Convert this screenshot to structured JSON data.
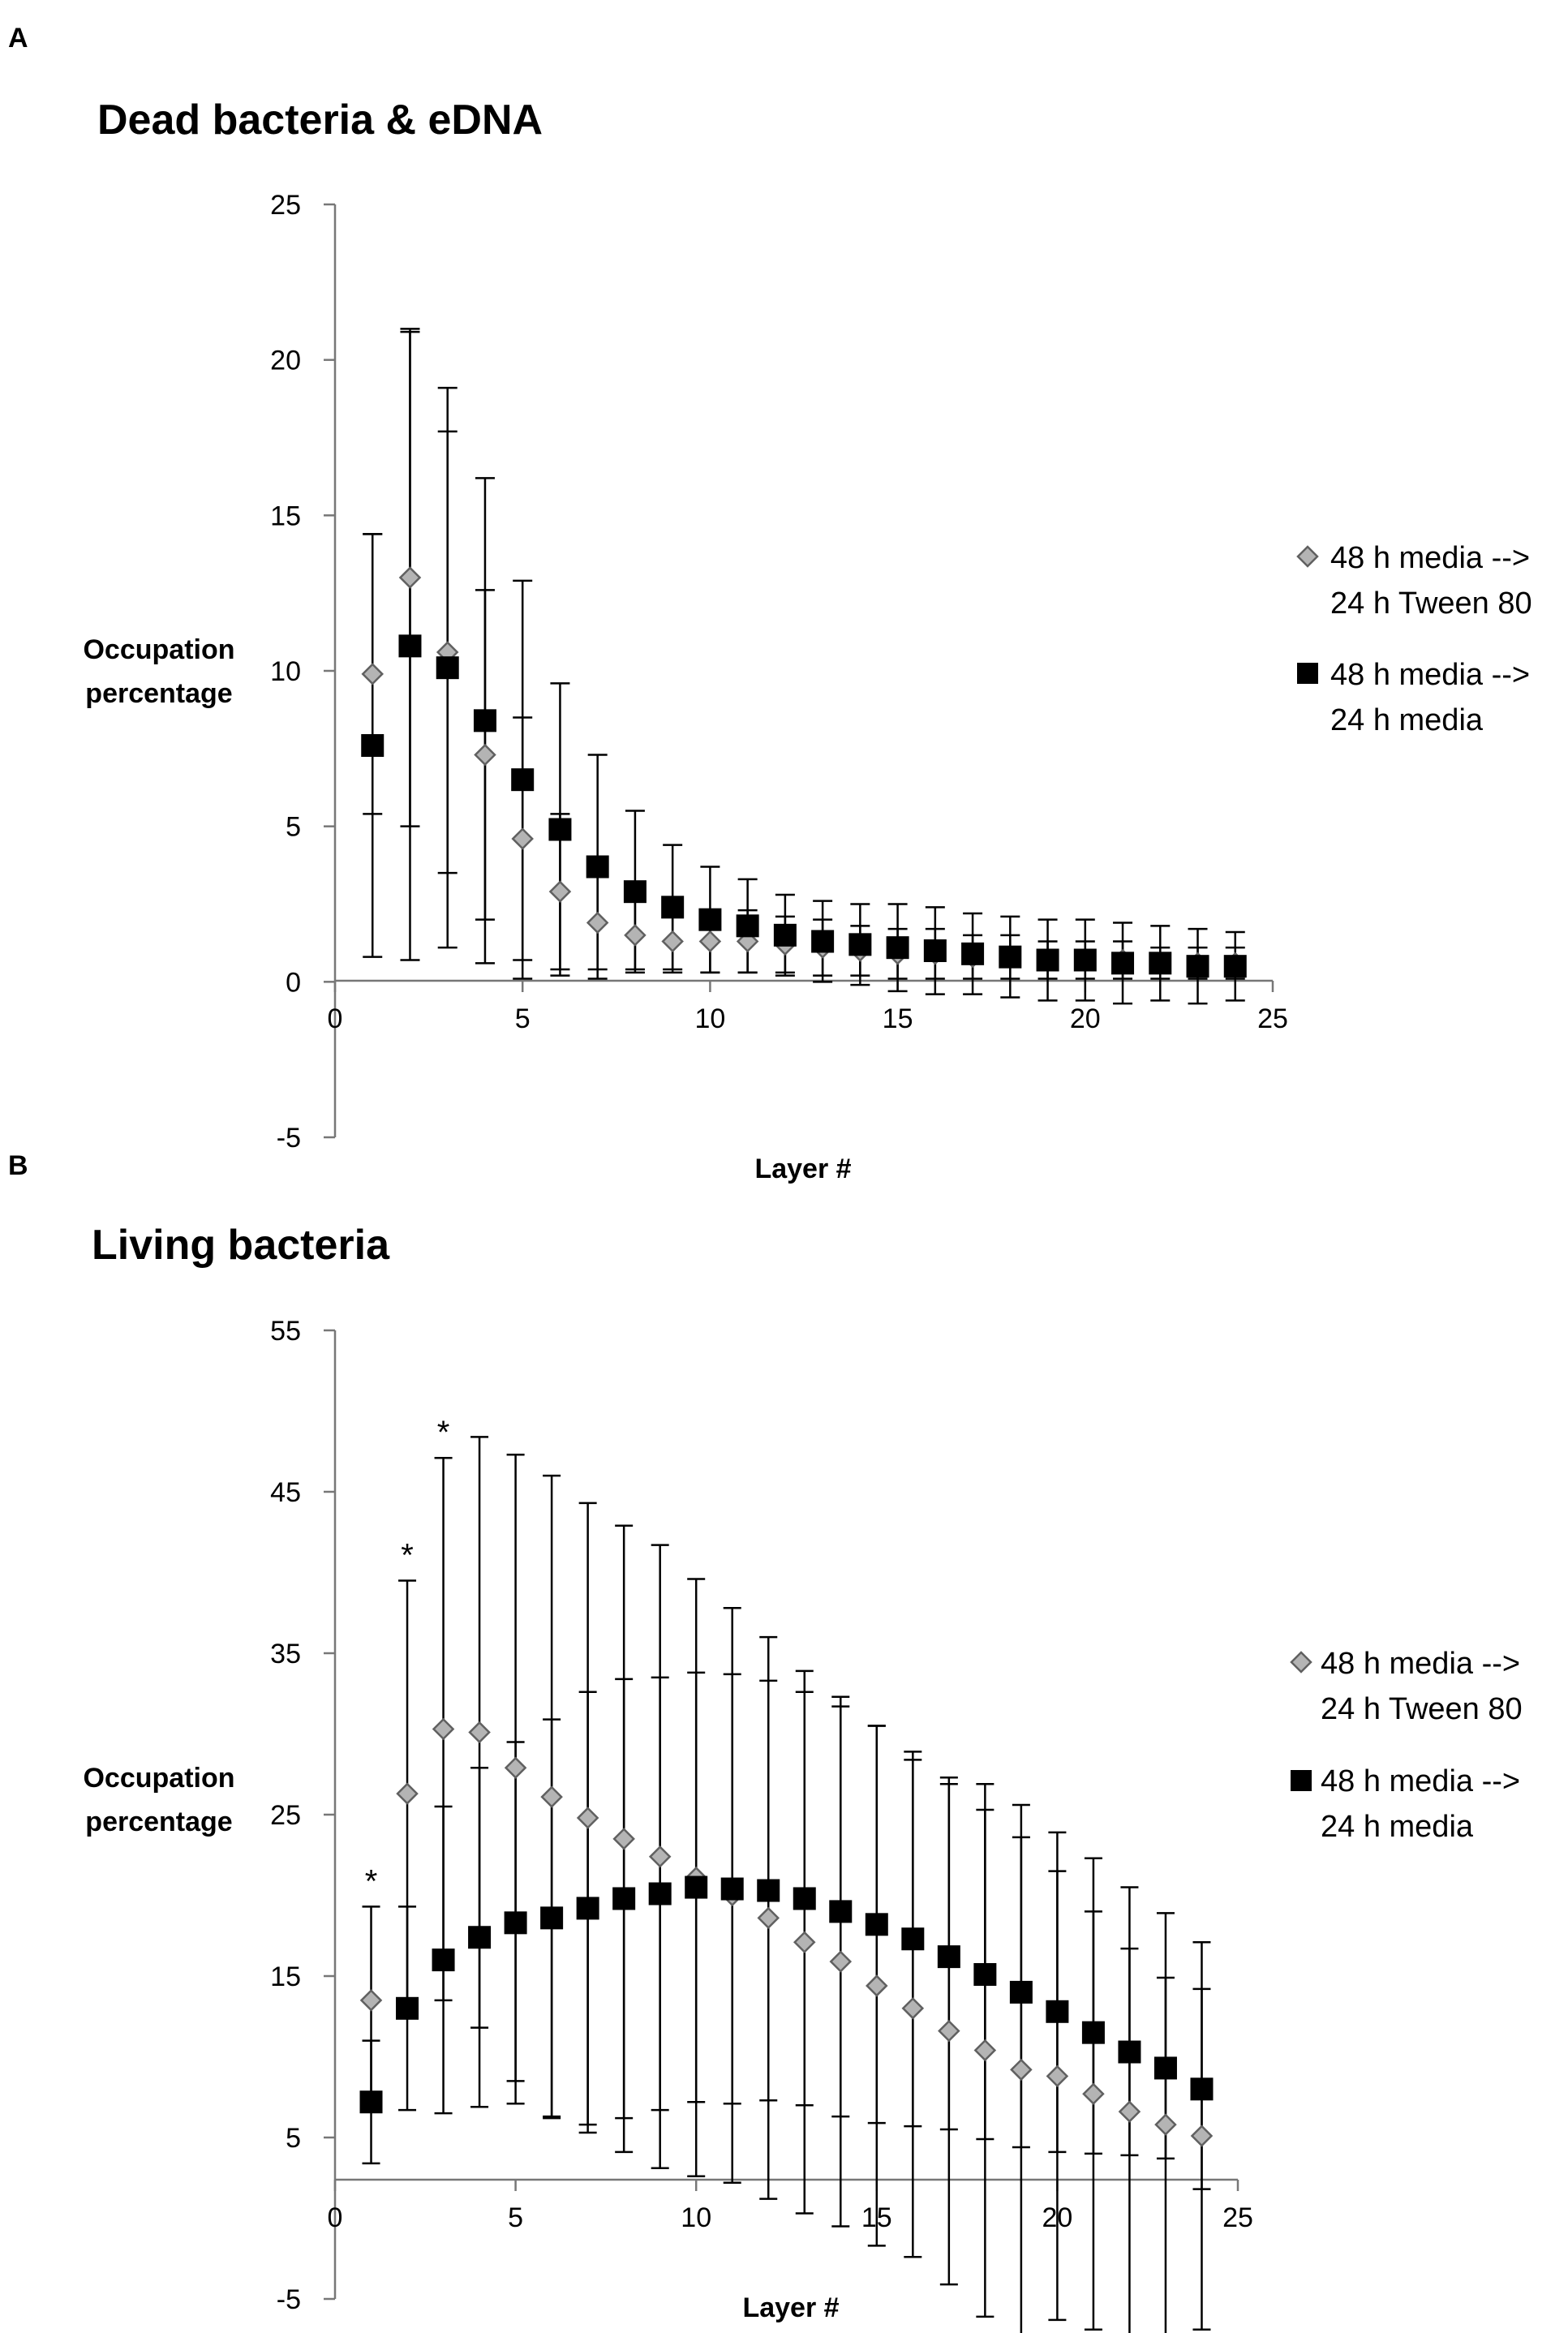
{
  "chart_data": [
    {
      "panel": "A",
      "type": "scatter",
      "title": "Dead bacteria & eDNA",
      "xlabel": "Layer #",
      "ylabel": [
        "Occupation",
        "percentage"
      ],
      "xlim": [
        0,
        25
      ],
      "ylim": [
        -5,
        25
      ],
      "xticks": [
        0,
        5,
        10,
        15,
        20,
        25
      ],
      "yticks": [
        -5,
        0,
        5,
        10,
        15,
        20,
        25
      ],
      "grid": false,
      "legend_position": "right",
      "x": [
        1,
        2,
        3,
        4,
        5,
        6,
        7,
        8,
        9,
        10,
        11,
        12,
        13,
        14,
        15,
        16,
        17,
        18,
        19,
        20,
        21,
        22,
        23,
        24
      ],
      "series": [
        {
          "name": [
            "48 h media -->",
            "24 h Tween 80"
          ],
          "marker": "diamond",
          "color": "#b4b4b4",
          "values": [
            9.9,
            13.0,
            10.6,
            7.3,
            4.6,
            2.9,
            1.9,
            1.5,
            1.3,
            1.3,
            1.3,
            1.2,
            1.1,
            1.0,
            0.9,
            0.9,
            0.8,
            0.8,
            0.7,
            0.7,
            0.7,
            0.6,
            0.6,
            0.6
          ],
          "errors": [
            4.5,
            8.0,
            7.1,
            5.3,
            3.9,
            2.5,
            1.5,
            1.1,
            1.0,
            1.0,
            1.0,
            0.9,
            0.9,
            0.8,
            0.8,
            0.8,
            0.7,
            0.7,
            0.6,
            0.6,
            0.6,
            0.5,
            0.5,
            0.5
          ]
        },
        {
          "name": [
            "48 h media -->",
            "24 h media"
          ],
          "marker": "square",
          "color": "#000000",
          "values": [
            7.6,
            10.8,
            10.1,
            8.4,
            6.5,
            4.9,
            3.7,
            2.9,
            2.4,
            2.0,
            1.8,
            1.5,
            1.3,
            1.2,
            1.1,
            1.0,
            0.9,
            0.8,
            0.7,
            0.7,
            0.6,
            0.6,
            0.5,
            0.5
          ],
          "errors": [
            6.8,
            10.1,
            9.0,
            7.8,
            6.4,
            4.7,
            3.6,
            2.6,
            2.0,
            1.7,
            1.5,
            1.3,
            1.3,
            1.3,
            1.4,
            1.4,
            1.3,
            1.3,
            1.3,
            1.3,
            1.3,
            1.2,
            1.2,
            1.1
          ]
        }
      ],
      "annotations": []
    },
    {
      "panel": "B",
      "type": "scatter",
      "title": "Living bacteria",
      "xlabel": "Layer #",
      "ylabel": [
        "Occupation",
        "percentage"
      ],
      "xlim": [
        0,
        25
      ],
      "ylim": [
        -5,
        55
      ],
      "xticks": [
        0,
        5,
        10,
        15,
        20,
        25
      ],
      "yticks": [
        -5,
        5,
        15,
        25,
        35,
        45,
        55
      ],
      "grid": false,
      "legend_position": "right",
      "x": [
        1,
        2,
        3,
        4,
        5,
        6,
        7,
        8,
        9,
        10,
        11,
        12,
        13,
        14,
        15,
        16,
        17,
        18,
        19,
        20,
        21,
        22,
        23,
        24
      ],
      "series": [
        {
          "name": [
            "48 h media -->",
            "24 h Tween 80"
          ],
          "marker": "diamond",
          "color": "#b4b4b4",
          "values": [
            13.5,
            26.3,
            30.3,
            30.1,
            27.9,
            26.1,
            24.8,
            23.5,
            22.4,
            21.1,
            20.0,
            18.6,
            17.1,
            15.9,
            14.4,
            13.0,
            11.6,
            10.4,
            9.2,
            8.8,
            7.7,
            6.6,
            5.8,
            5.1
          ],
          "errors": [
            5.8,
            13.2,
            16.8,
            18.3,
            19.4,
            19.9,
            19.5,
            19.4,
            19.3,
            18.5,
            17.8,
            17.4,
            16.8,
            16.4,
            16.1,
            15.4,
            15.7,
            16.5,
            16.4,
            15.1,
            14.6,
            13.9,
            13.1,
            12.0
          ],
          "annotations": [
            {
              "x": 1,
              "text": "*"
            },
            {
              "x": 2,
              "text": "*"
            },
            {
              "x": 3,
              "text": "*"
            }
          ]
        },
        {
          "name": [
            "48 h media -->",
            "24 h media"
          ],
          "marker": "square",
          "color": "#000000",
          "values": [
            7.2,
            13.0,
            16.0,
            17.4,
            18.3,
            18.6,
            19.2,
            19.8,
            20.1,
            20.5,
            20.4,
            20.3,
            19.8,
            19.0,
            18.2,
            17.3,
            16.2,
            15.1,
            14.0,
            12.8,
            11.5,
            10.3,
            9.3,
            8.0
          ],
          "errors": [
            3.8,
            6.3,
            9.5,
            10.5,
            11.2,
            12.3,
            13.4,
            13.6,
            13.4,
            13.3,
            13.3,
            13.0,
            12.8,
            12.7,
            12.3,
            11.6,
            10.7,
            10.2,
            9.6,
            8.7,
            7.5,
            6.4,
            5.6,
            6.2
          ]
        }
      ]
    }
  ]
}
